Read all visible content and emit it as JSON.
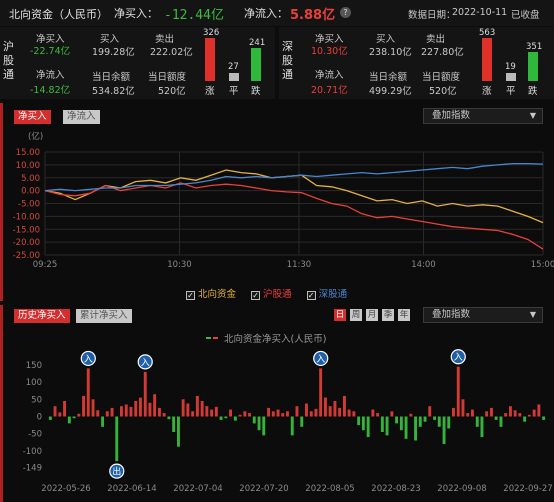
{
  "header": {
    "title": "北向资金（人民币）",
    "net_buy_label": "净买入：",
    "net_buy_value": "-12.44亿",
    "net_inflow_label": "净流入：",
    "net_inflow_value": "5.88亿",
    "date_label": "数据日期：",
    "date_value": "2022-10-11",
    "status": "已收盘"
  },
  "sh": {
    "name": "沪股通",
    "net_buy_label": "净买入",
    "net_buy": "-22.74亿",
    "buy_label": "买入",
    "buy": "199.28亿",
    "sell_label": "卖出",
    "sell": "222.02亿",
    "net_inflow_label": "净流入",
    "net_inflow": "-14.82亿",
    "balance_label": "当日余额",
    "balance": "534.82亿",
    "quota_label": "当日额度",
    "quota": "520亿",
    "up": "326",
    "flat": "27",
    "down": "241",
    "up_label": "涨",
    "flat_label": "平",
    "down_label": "跌"
  },
  "sz": {
    "name": "深股通",
    "net_buy_label": "净买入",
    "net_buy": "10.30亿",
    "buy_label": "买入",
    "buy": "238.10亿",
    "sell_label": "卖出",
    "sell": "227.80亿",
    "net_inflow_label": "净流入",
    "net_inflow": "20.71亿",
    "balance_label": "当日余额",
    "balance": "499.29亿",
    "quota_label": "当日额度",
    "quota": "520亿",
    "up": "563",
    "flat": "19",
    "down": "351",
    "up_label": "涨",
    "flat_label": "平",
    "down_label": "跌"
  },
  "intraday": {
    "tab_active": "净买入",
    "tab_inactive": "净流入",
    "overlay": "叠加指数",
    "unit": "(亿)",
    "legend": [
      "北向资金",
      "沪股通",
      "深股通"
    ],
    "colors": {
      "north": "#e3b341",
      "sh": "#e8403a",
      "sz": "#4a86d0"
    }
  },
  "history": {
    "tab_active": "历史净买入",
    "tab_inactive": "累计净买入",
    "periods": [
      "日",
      "周",
      "月",
      "季",
      "年"
    ],
    "overlay": "叠加指数",
    "legend": "北向资金净买入(人民币)",
    "marker_in": "入",
    "marker_out": "出"
  },
  "chart_data": [
    {
      "type": "line",
      "ylabel": "(亿)",
      "ylim": [
        -25,
        15
      ],
      "yticks": [
        "15.00",
        "10.00",
        "5.00",
        "0.00",
        "-5.00",
        "-10.00",
        "-15.00",
        "-20.00",
        "-25.00"
      ],
      "xticks": [
        "09:25",
        "10:30",
        "11:30",
        "14:00",
        "15:00"
      ],
      "grid": true,
      "series": [
        {
          "name": "北向资金",
          "color": "#e3b341",
          "values": [
            0,
            -1,
            -3.5,
            -1,
            2,
            1,
            3.5,
            4,
            3,
            5,
            4,
            6,
            8,
            7,
            6.5,
            5,
            5.5,
            6,
            2,
            1.5,
            0,
            -2,
            -4,
            -3.5,
            -5,
            -4,
            -6,
            -5,
            -6,
            -5.5,
            -6,
            -8,
            -10,
            -12.4
          ]
        },
        {
          "name": "沪股通",
          "color": "#e8403a",
          "values": [
            0,
            -1.5,
            -2,
            -1,
            2,
            0,
            1,
            2,
            1,
            3,
            1,
            2,
            2.5,
            2,
            1,
            0,
            -0.5,
            -0.8,
            -3,
            -5,
            -6,
            -9,
            -10.5,
            -10,
            -11,
            -12,
            -13,
            -14,
            -14.5,
            -15,
            -15.5,
            -17,
            -19,
            -22.7
          ]
        },
        {
          "name": "深股通",
          "color": "#4a86d0",
          "values": [
            0,
            0.5,
            0,
            0.5,
            1,
            1,
            2,
            2,
            2,
            2.5,
            3,
            4,
            5.5,
            5,
            5.5,
            5,
            5.5,
            6,
            5.5,
            6,
            6.5,
            7,
            6.5,
            7,
            7.5,
            8,
            8.5,
            9,
            8.5,
            9.5,
            10,
            10.5,
            10.5,
            10.3
          ]
        }
      ]
    },
    {
      "type": "bar",
      "ylim": [
        -150,
        150
      ],
      "yticks": [
        "150",
        "100",
        "50",
        "0",
        "-50",
        "-100",
        "-149"
      ],
      "xticks": [
        "2022-05-26",
        "2022-06-14",
        "2022-07-04",
        "2022-07-20",
        "2022-08-05",
        "2022-08-23",
        "2022-09-08",
        "2022-09-27"
      ],
      "values": [
        -10,
        30,
        12,
        45,
        -20,
        -5,
        8,
        60,
        140,
        50,
        18,
        -30,
        15,
        25,
        -130,
        30,
        35,
        28,
        45,
        55,
        130,
        40,
        65,
        25,
        10,
        -8,
        -45,
        -88,
        50,
        38,
        15,
        60,
        45,
        30,
        20,
        28,
        -10,
        -5,
        20,
        -12,
        5,
        15,
        10,
        -20,
        -40,
        -55,
        25,
        15,
        20,
        10,
        15,
        -55,
        30,
        -30,
        38,
        15,
        22,
        140,
        55,
        30,
        45,
        25,
        60,
        20,
        15,
        -25,
        -40,
        -60,
        20,
        10,
        -45,
        -55,
        15,
        -20,
        -40,
        -65,
        8,
        -70,
        -30,
        -15,
        30,
        -10,
        -30,
        -80,
        -35,
        25,
        145,
        50,
        10,
        20,
        -30,
        -60,
        15,
        25,
        -10,
        -30,
        10,
        30,
        18,
        10,
        -15,
        5,
        20,
        35,
        -10
      ]
    }
  ]
}
